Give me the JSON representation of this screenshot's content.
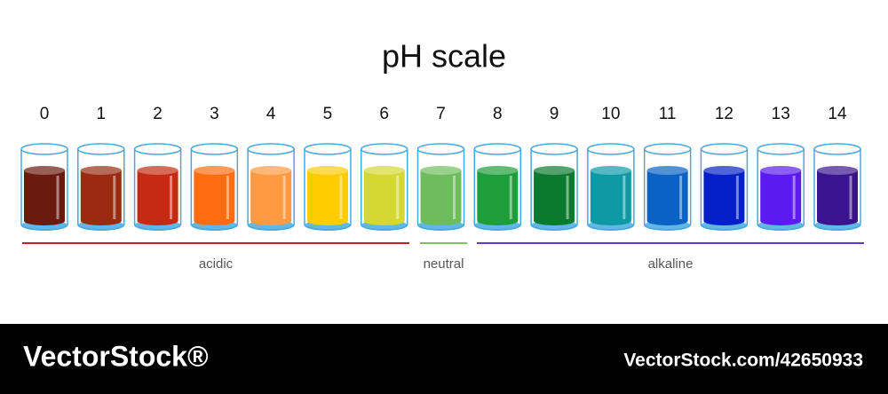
{
  "title": "pH scale",
  "levels": [
    {
      "label": "0",
      "color": "#6b1a0f"
    },
    {
      "label": "1",
      "color": "#9a2a10"
    },
    {
      "label": "2",
      "color": "#c62a12"
    },
    {
      "label": "3",
      "color": "#ff6d10"
    },
    {
      "label": "4",
      "color": "#ff9a40"
    },
    {
      "label": "5",
      "color": "#ffcc00"
    },
    {
      "label": "6",
      "color": "#d4d831"
    },
    {
      "label": "7",
      "color": "#6dbd5c"
    },
    {
      "label": "8",
      "color": "#1e9e3a"
    },
    {
      "label": "9",
      "color": "#0a7a2e"
    },
    {
      "label": "10",
      "color": "#0e9aa5"
    },
    {
      "label": "11",
      "color": "#0a62c4"
    },
    {
      "label": "12",
      "color": "#0520c8"
    },
    {
      "label": "13",
      "color": "#5a1af0"
    },
    {
      "label": "14",
      "color": "#3a148f"
    }
  ],
  "groups": [
    {
      "label": "acidic",
      "color": "#b5262a"
    },
    {
      "label": "neutral",
      "color": "#7dc35b"
    },
    {
      "label": "alkaline",
      "color": "#5b3cc4"
    }
  ],
  "footer": {
    "brand": "VectorStock®",
    "id": "VectorStock.com/42650933"
  }
}
